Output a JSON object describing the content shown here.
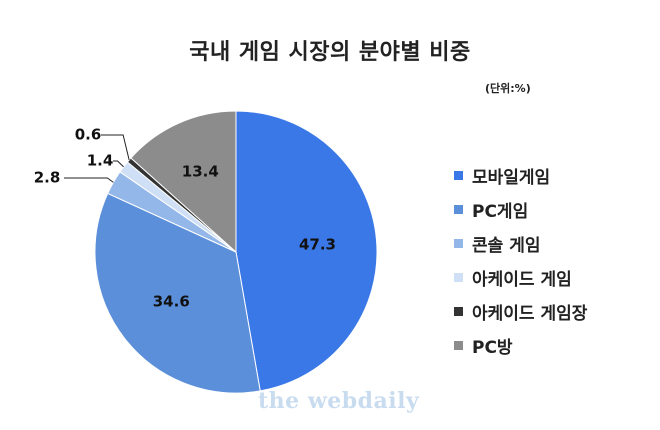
{
  "header": {
    "title": "국내 게임 시장의 분야별 비중",
    "unit": "(단위:%)"
  },
  "watermark": "the webdaily",
  "chart_data": {
    "type": "pie",
    "title": "국내 게임 시장의 분야별 비중",
    "unit": "%",
    "legend_position": "right",
    "start_angle_deg": 0,
    "direction": "clockwise",
    "slices": [
      {
        "label": "모바일게임",
        "value": 47.3,
        "display": "47.3",
        "color": "#3b78e7",
        "label_color": "#111111"
      },
      {
        "label": "PC게임",
        "value": 34.6,
        "display": "34.6",
        "color": "#5b8fd9",
        "label_color": "#111111"
      },
      {
        "label": "콘솔 게임",
        "value": 2.8,
        "display": "2.8",
        "color": "#93b7e8",
        "label_color": "#111111"
      },
      {
        "label": "아케이드 게임",
        "value": 1.4,
        "display": "1.4",
        "color": "#cfdff5",
        "label_color": "#111111"
      },
      {
        "label": "아케이드 게임장",
        "value": 0.6,
        "display": "0.6",
        "color": "#333333",
        "label_color": "#111111"
      },
      {
        "label": "PC방",
        "value": 13.4,
        "display": "13.4",
        "color": "#8c8c8c",
        "label_color": "#111111"
      }
    ]
  }
}
